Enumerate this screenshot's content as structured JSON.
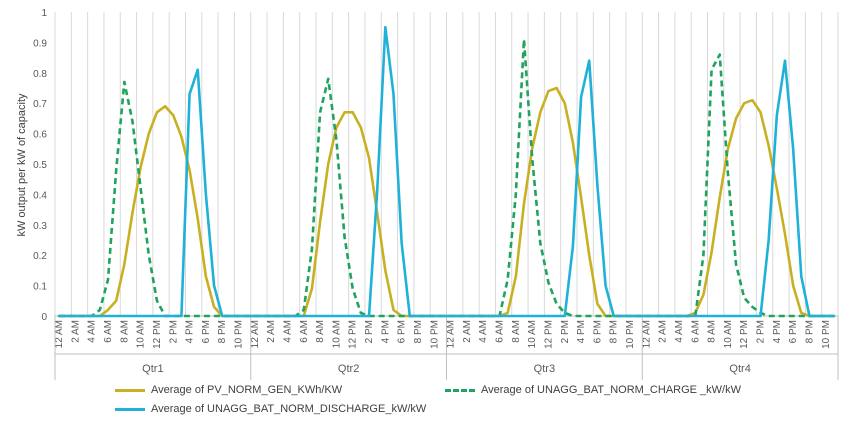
{
  "chart_data": {
    "type": "line",
    "ylabel": "kW output per kW of capacity",
    "ylim": [
      0,
      1
    ],
    "yticks": [
      "0",
      "0.1",
      "0.2",
      "0.3",
      "0.4",
      "0.5",
      "0.6",
      "0.7",
      "0.8",
      "0.9",
      "1"
    ],
    "grid": "vertical",
    "legend_position": "bottom",
    "groups": [
      "Qtr1",
      "Qtr2",
      "Qtr3",
      "Qtr4"
    ],
    "hour_labels": [
      "12 AM",
      "2 AM",
      "4 AM",
      "6 AM",
      "8 AM",
      "10 AM",
      "12 PM",
      "2 PM",
      "4 PM",
      "6 PM",
      "8 PM",
      "10 PM"
    ],
    "hours_per_group": 24,
    "series": [
      {
        "name": "Average of PV_NORM_GEN_KWh/KW",
        "color": "#C9B022",
        "style": "solid",
        "values": [
          [
            0,
            0,
            0,
            0,
            0,
            0,
            0.02,
            0.05,
            0.17,
            0.34,
            0.49,
            0.6,
            0.67,
            0.69,
            0.66,
            0.59,
            0.48,
            0.32,
            0.13,
            0.03,
            0,
            0,
            0,
            0
          ],
          [
            0,
            0,
            0,
            0,
            0,
            0,
            0,
            0.09,
            0.31,
            0.5,
            0.62,
            0.67,
            0.67,
            0.62,
            0.52,
            0.34,
            0.15,
            0.02,
            0,
            0,
            0,
            0,
            0,
            0
          ],
          [
            0,
            0,
            0,
            0,
            0,
            0,
            0,
            0.01,
            0.13,
            0.37,
            0.55,
            0.67,
            0.74,
            0.75,
            0.7,
            0.57,
            0.39,
            0.2,
            0.04,
            0,
            0,
            0,
            0,
            0
          ],
          [
            0,
            0,
            0,
            0,
            0,
            0,
            0.01,
            0.07,
            0.21,
            0.39,
            0.55,
            0.65,
            0.7,
            0.71,
            0.67,
            0.56,
            0.42,
            0.27,
            0.1,
            0.01,
            0,
            0,
            0,
            0
          ]
        ]
      },
      {
        "name": "Average of UNAGG_BAT_NORM_CHARGE _kW/kW",
        "color": "#1FA35F",
        "style": "dashed",
        "values": [
          [
            0,
            0,
            0,
            0,
            0,
            0.02,
            0.12,
            0.48,
            0.77,
            0.64,
            0.42,
            0.2,
            0.05,
            0,
            0,
            0,
            0,
            0,
            0,
            0,
            0,
            0,
            0,
            0
          ],
          [
            0,
            0,
            0,
            0,
            0,
            0,
            0.02,
            0.22,
            0.67,
            0.78,
            0.58,
            0.26,
            0.09,
            0.01,
            0,
            0,
            0,
            0,
            0,
            0,
            0,
            0,
            0,
            0
          ],
          [
            0,
            0,
            0,
            0,
            0,
            0,
            0,
            0.12,
            0.4,
            0.91,
            0.52,
            0.24,
            0.11,
            0.04,
            0.01,
            0,
            0,
            0,
            0,
            0,
            0,
            0,
            0,
            0
          ],
          [
            0,
            0,
            0,
            0,
            0,
            0,
            0,
            0.2,
            0.81,
            0.86,
            0.47,
            0.17,
            0.06,
            0.03,
            0.01,
            0,
            0,
            0,
            0,
            0,
            0,
            0,
            0,
            0
          ]
        ]
      },
      {
        "name": "Average of UNAGG_BAT_NORM_DISCHARGE_kW/kW",
        "color": "#1FB1D8",
        "style": "solid",
        "values": [
          [
            0,
            0,
            0,
            0,
            0,
            0,
            0,
            0,
            0,
            0,
            0,
            0,
            0,
            0,
            0,
            0,
            0.73,
            0.81,
            0.4,
            0.1,
            0,
            0,
            0,
            0
          ],
          [
            0,
            0,
            0,
            0,
            0,
            0,
            0,
            0,
            0,
            0,
            0,
            0,
            0,
            0,
            0,
            0.41,
            0.95,
            0.73,
            0.24,
            0,
            0,
            0,
            0,
            0
          ],
          [
            0,
            0,
            0,
            0,
            0,
            0,
            0,
            0,
            0,
            0,
            0,
            0,
            0,
            0,
            0,
            0.23,
            0.72,
            0.84,
            0.43,
            0.1,
            0,
            0,
            0,
            0
          ],
          [
            0,
            0,
            0,
            0,
            0,
            0,
            0,
            0,
            0,
            0,
            0,
            0,
            0,
            0,
            0,
            0.25,
            0.66,
            0.84,
            0.55,
            0.13,
            0,
            0,
            0,
            0
          ]
        ]
      }
    ]
  }
}
